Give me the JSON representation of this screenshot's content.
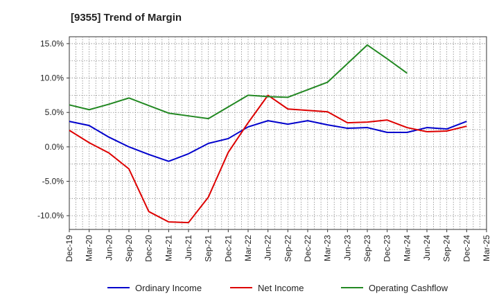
{
  "chart_data": {
    "type": "line",
    "title": "[9355]  Trend of Margin",
    "xlabel": "",
    "ylabel": "",
    "x": [
      "Dec-19",
      "Mar-20",
      "Jun-20",
      "Sep-20",
      "Dec-20",
      "Mar-21",
      "Jun-21",
      "Sep-21",
      "Dec-21",
      "Mar-22",
      "Jun-22",
      "Sep-22",
      "Dec-22",
      "Mar-23",
      "Jun-23",
      "Sep-23",
      "Dec-23",
      "Mar-24",
      "Jun-24",
      "Sep-24",
      "Dec-24",
      "Mar-25"
    ],
    "ylim": [
      -12,
      16
    ],
    "yticks": [
      15,
      10,
      5,
      0,
      -5,
      -10
    ],
    "ytick_labels": [
      "15.0%",
      "10.0%",
      "5.0%",
      "0.0%",
      "-5.0%",
      "-10.0%"
    ],
    "grid": true,
    "legend_position": "bottom",
    "series": [
      {
        "name": "Ordinary Income",
        "color": "#0000cc",
        "values": [
          3.7,
          3.1,
          1.4,
          0.0,
          -1.1,
          -2.1,
          -1.0,
          0.5,
          1.2,
          2.9,
          3.8,
          3.3,
          3.8,
          3.2,
          2.7,
          2.8,
          2.1,
          2.1,
          2.8,
          2.6,
          3.7,
          null
        ]
      },
      {
        "name": "Net Income",
        "color": "#dd0000",
        "values": [
          2.4,
          0.6,
          -0.9,
          -3.2,
          -9.4,
          -10.9,
          -11.0,
          -7.3,
          -0.8,
          3.5,
          7.5,
          5.5,
          5.3,
          5.1,
          3.5,
          3.6,
          3.9,
          2.8,
          2.2,
          2.3,
          3.0,
          null
        ]
      },
      {
        "name": "Operating Cashflow",
        "color": "#228822",
        "values": [
          6.1,
          5.4,
          6.2,
          7.1,
          6.0,
          4.9,
          4.5,
          4.1,
          5.8,
          7.5,
          7.3,
          7.2,
          8.3,
          9.4,
          12.1,
          14.8,
          12.8,
          10.7,
          null,
          null,
          null,
          null
        ]
      }
    ]
  }
}
